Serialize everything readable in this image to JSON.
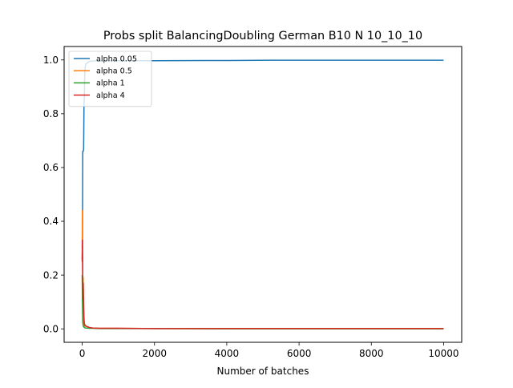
{
  "chart_data": {
    "type": "line",
    "title": "Probs split BalancingDoubling German B10 N 10_10_10",
    "xlabel": "Number of batches",
    "ylabel": "",
    "xlim": [
      -500,
      10500
    ],
    "ylim": [
      -0.05,
      1.05
    ],
    "xticks": [
      0,
      2000,
      4000,
      6000,
      8000,
      10000
    ],
    "xtick_labels": [
      "0",
      "2000",
      "4000",
      "6000",
      "8000",
      "10000"
    ],
    "yticks": [
      0.0,
      0.2,
      0.4,
      0.6,
      0.8,
      1.0
    ],
    "ytick_labels": [
      "0.0",
      "0.2",
      "0.4",
      "0.6",
      "0.8",
      "1.0"
    ],
    "grid": false,
    "legend_position": "upper-left",
    "series": [
      {
        "name": "alpha 0.05",
        "color": "#1f77b4",
        "x": [
          0,
          5,
          10,
          15,
          20,
          30,
          40,
          50,
          60,
          70,
          80,
          100,
          150,
          200,
          300,
          500,
          1000,
          2000,
          4000,
          5300,
          6000,
          8000,
          10000
        ],
        "y": [
          0.26,
          0.3,
          0.42,
          0.66,
          0.66,
          0.66,
          0.67,
          0.84,
          0.86,
          0.95,
          0.97,
          0.985,
          0.99,
          0.995,
          0.996,
          0.997,
          0.997,
          0.997,
          0.998,
          0.999,
          0.999,
          0.999,
          0.999
        ]
      },
      {
        "name": "alpha 0.5",
        "color": "#ff7f0e",
        "x": [
          0,
          5,
          10,
          15,
          20,
          25,
          30,
          40,
          50,
          60,
          80,
          100,
          150,
          200,
          300,
          500,
          1000,
          2000,
          4000,
          6000,
          8000,
          10000
        ],
        "y": [
          0.3,
          0.44,
          0.38,
          0.2,
          0.15,
          0.19,
          0.12,
          0.05,
          0.02,
          0.01,
          0.015,
          0.01,
          0.008,
          0.004,
          0.003,
          0.002,
          0.002,
          0.001,
          0.001,
          0.001,
          0.001,
          0.001
        ]
      },
      {
        "name": "alpha 1",
        "color": "#2ca02c",
        "x": [
          0,
          5,
          10,
          15,
          20,
          30,
          40,
          60,
          80,
          100,
          150,
          200,
          300,
          500,
          1000,
          2000,
          4000,
          6000,
          8000,
          10000
        ],
        "y": [
          0.2,
          0.12,
          0.07,
          0.03,
          0.02,
          0.01,
          0.008,
          0.005,
          0.004,
          0.003,
          0.003,
          0.002,
          0.002,
          0.001,
          0.001,
          0.001,
          0.0,
          0.0,
          0.0,
          0.0
        ]
      },
      {
        "name": "alpha 4",
        "color": "#d62728",
        "x": [
          0,
          5,
          10,
          15,
          20,
          30,
          40,
          50,
          60,
          70,
          80,
          100,
          150,
          200,
          300,
          500,
          1000,
          2000,
          4000,
          6000,
          8000,
          10000
        ],
        "y": [
          0.25,
          0.33,
          0.24,
          0.16,
          0.11,
          0.17,
          0.09,
          0.04,
          0.02,
          0.015,
          0.012,
          0.01,
          0.008,
          0.005,
          0.003,
          0.002,
          0.002,
          0.001,
          0.001,
          0.001,
          0.001,
          0.001
        ]
      }
    ]
  }
}
